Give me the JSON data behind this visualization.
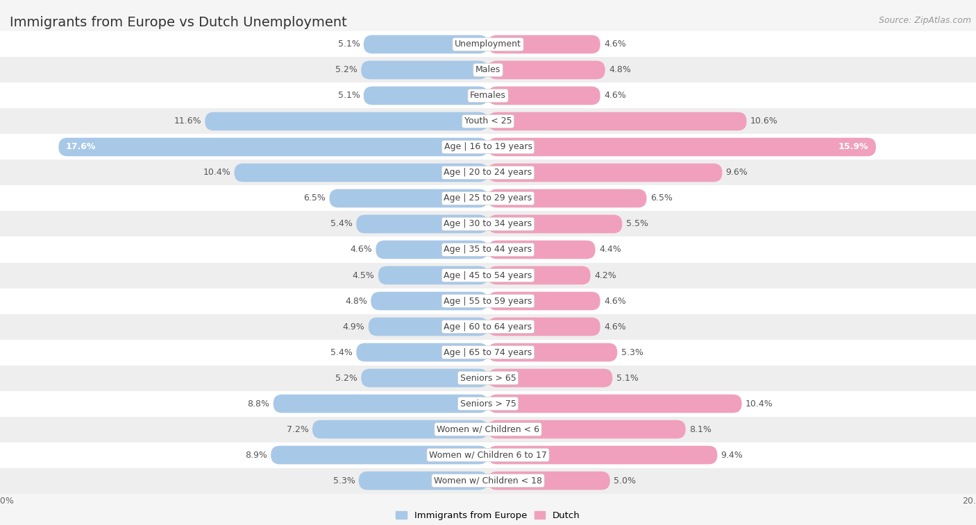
{
  "title": "Immigrants from Europe vs Dutch Unemployment",
  "source": "Source: ZipAtlas.com",
  "categories": [
    "Unemployment",
    "Males",
    "Females",
    "Youth < 25",
    "Age | 16 to 19 years",
    "Age | 20 to 24 years",
    "Age | 25 to 29 years",
    "Age | 30 to 34 years",
    "Age | 35 to 44 years",
    "Age | 45 to 54 years",
    "Age | 55 to 59 years",
    "Age | 60 to 64 years",
    "Age | 65 to 74 years",
    "Seniors > 65",
    "Seniors > 75",
    "Women w/ Children < 6",
    "Women w/ Children 6 to 17",
    "Women w/ Children < 18"
  ],
  "left_values": [
    5.1,
    5.2,
    5.1,
    11.6,
    17.6,
    10.4,
    6.5,
    5.4,
    4.6,
    4.5,
    4.8,
    4.9,
    5.4,
    5.2,
    8.8,
    7.2,
    8.9,
    5.3
  ],
  "right_values": [
    4.6,
    4.8,
    4.6,
    10.6,
    15.9,
    9.6,
    6.5,
    5.5,
    4.4,
    4.2,
    4.6,
    4.6,
    5.3,
    5.1,
    10.4,
    8.1,
    9.4,
    5.0
  ],
  "left_color": "#a8c8e8",
  "right_color": "#f0a0bc",
  "left_color_dark": "#7aaed4",
  "right_color_dark": "#e87098",
  "row_bg_white": "#ffffff",
  "row_bg_gray": "#eeeeee",
  "chart_bg": "#f5f5f5",
  "axis_limit": 20.0,
  "legend_left": "Immigrants from Europe",
  "legend_right": "Dutch",
  "title_fontsize": 14,
  "source_fontsize": 9,
  "value_fontsize": 9,
  "category_fontsize": 9,
  "bar_height": 0.72
}
